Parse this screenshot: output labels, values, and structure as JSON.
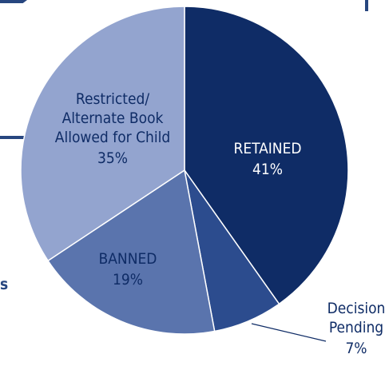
{
  "chart_data": {
    "type": "pie",
    "categories": [
      "RETAINED",
      "Decision\nPending",
      "BANNED",
      "Restricted/\nAlternate Book\nAllowed for Child"
    ],
    "values": [
      41,
      7,
      19,
      35
    ],
    "value_labels": [
      "41%",
      "7%",
      "19%",
      "35%"
    ],
    "colors": [
      "#0f2c66",
      "#2c4c8e",
      "#5a74ad",
      "#93a4cf"
    ]
  },
  "side_text": "s"
}
